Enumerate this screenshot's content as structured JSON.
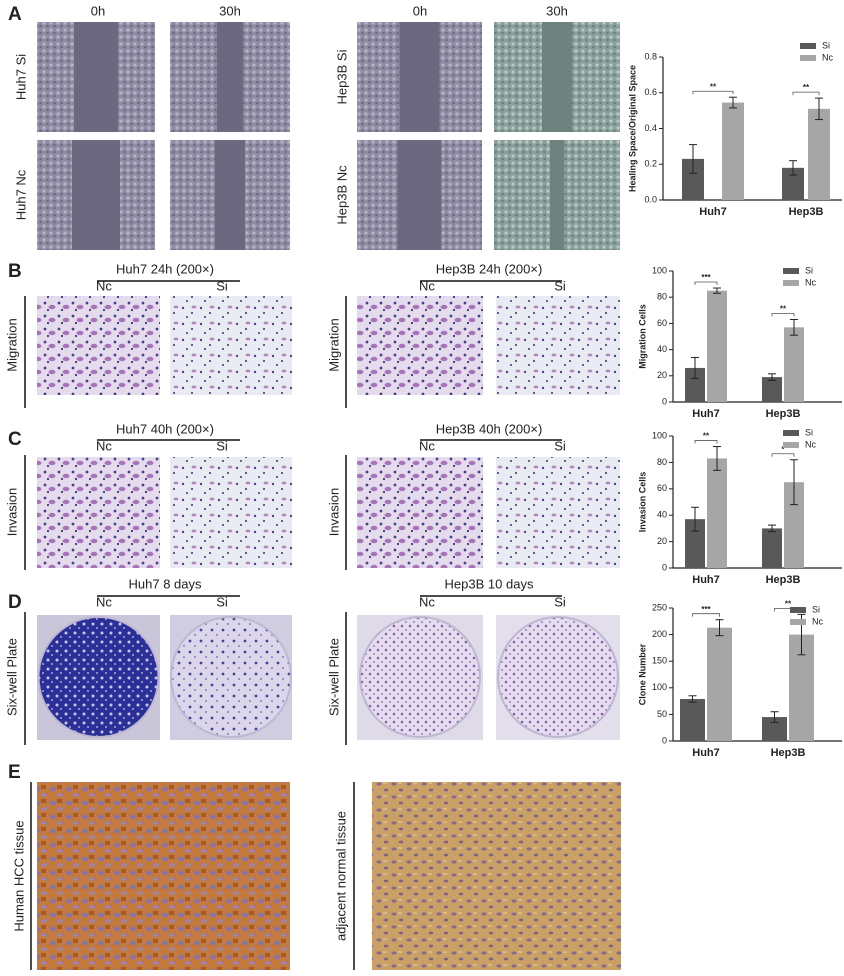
{
  "panel_labels": [
    "A",
    "B",
    "C",
    "D",
    "E"
  ],
  "panel_a": {
    "left": {
      "columns": [
        "0h",
        "30h"
      ],
      "rows": [
        "Huh7 Si",
        "Huh7 Nc"
      ]
    },
    "right": {
      "columns": [
        "0h",
        "30h"
      ],
      "rows": [
        "Hep3B Si",
        "Hep3B Nc"
      ]
    }
  },
  "panel_b": {
    "left": {
      "title": "Huh7 24h (200×)",
      "columns": [
        "Nc",
        "Si"
      ],
      "row_label": "Migration"
    },
    "right": {
      "title": "Hep3B 24h (200×)",
      "columns": [
        "Nc",
        "Si"
      ],
      "row_label": "Migration"
    }
  },
  "panel_c": {
    "left": {
      "title": "Huh7 40h (200×)",
      "columns": [
        "Nc",
        "Si"
      ],
      "row_label": "Invasion"
    },
    "right": {
      "title": "Hep3B 40h (200×)",
      "columns": [
        "Nc",
        "Si"
      ],
      "row_label": "Invasion"
    }
  },
  "panel_d": {
    "left": {
      "title": "Huh7 8 days",
      "columns": [
        "Nc",
        "Si"
      ],
      "row_label": "Six-well Plate"
    },
    "right": {
      "title": "Hep3B 10 days",
      "columns": [
        "Nc",
        "Si"
      ],
      "row_label": "Six-well Plate"
    }
  },
  "panel_e": {
    "labels": [
      "Human HCC tissue",
      "adjacent normal tissue"
    ]
  },
  "chart_data": [
    {
      "type": "bar",
      "ylabel": "Healing Space/Original Space",
      "categories": [
        "Huh7",
        "Hep3B"
      ],
      "ylim": [
        0,
        0.8
      ],
      "yticks": [
        {
          "value": 0,
          "label": "0.0"
        },
        0.2,
        0.4,
        0.6,
        0.8
      ],
      "legend": "upper right",
      "series": [
        {
          "name": "Si",
          "color": "#595959",
          "values": [
            0.23,
            0.18
          ],
          "errors": [
            0.08,
            0.04
          ]
        },
        {
          "name": "Nc",
          "color": "#a6a6a6",
          "values": [
            0.545,
            0.51
          ],
          "errors": [
            0.03,
            0.06
          ]
        }
      ],
      "significance": [
        "**",
        "**"
      ]
    },
    {
      "type": "bar",
      "ylabel": "Migration Cells",
      "categories": [
        "Huh7",
        "Hep3B"
      ],
      "ylim": [
        0,
        100
      ],
      "yticks": [
        0,
        20,
        40,
        60,
        80,
        100
      ],
      "legend": "upper right",
      "series": [
        {
          "name": "Si",
          "color": "#595959",
          "values": [
            26,
            19
          ],
          "errors": [
            8,
            2.5
          ]
        },
        {
          "name": "Nc",
          "color": "#a6a6a6",
          "values": [
            85,
            57
          ],
          "errors": [
            2,
            6
          ]
        }
      ],
      "significance": [
        "***",
        "**"
      ]
    },
    {
      "type": "bar",
      "ylabel": "Invasion Cells",
      "categories": [
        "Huh7",
        "Hep3B"
      ],
      "ylim": [
        0,
        100
      ],
      "yticks": [
        0,
        20,
        40,
        60,
        80,
        100
      ],
      "legend": "upper right",
      "series": [
        {
          "name": "Si",
          "color": "#595959",
          "values": [
            37,
            30
          ],
          "errors": [
            9,
            2.5
          ]
        },
        {
          "name": "Nc",
          "color": "#a6a6a6",
          "values": [
            83,
            65
          ],
          "errors": [
            9,
            17
          ]
        }
      ],
      "significance": [
        "**",
        "*"
      ]
    },
    {
      "type": "bar",
      "ylabel": "Clone Number",
      "categories": [
        "Huh7",
        "Hep3B"
      ],
      "ylim": [
        0,
        250
      ],
      "yticks": [
        0,
        50,
        100,
        150,
        200,
        250
      ],
      "legend": "upper right",
      "series": [
        {
          "name": "Si",
          "color": "#595959",
          "values": [
            79,
            45
          ],
          "errors": [
            6,
            10
          ]
        },
        {
          "name": "Nc",
          "color": "#a6a6a6",
          "values": [
            213,
            200
          ],
          "errors": [
            15,
            38
          ]
        }
      ],
      "significance": [
        "***",
        "**"
      ]
    }
  ]
}
